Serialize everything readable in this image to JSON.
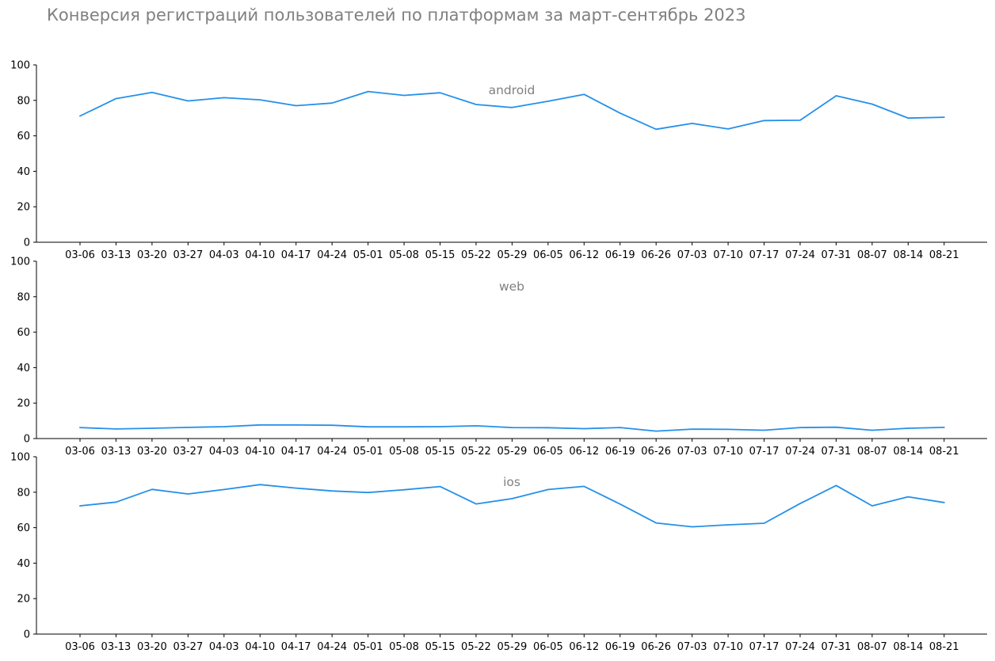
{
  "title": "Конверсия регистраций пользователей по платформам за март-сентябрь 2023",
  "chart_data": {
    "type": "line",
    "title": "Конверсия регистраций пользователей по платформам за март-сентябрь 2023",
    "x": [
      "03-06",
      "03-13",
      "03-20",
      "03-27",
      "04-03",
      "04-10",
      "04-17",
      "04-24",
      "05-01",
      "05-08",
      "05-15",
      "05-22",
      "05-29",
      "06-05",
      "06-12",
      "06-19",
      "06-26",
      "07-03",
      "07-10",
      "07-17",
      "07-24",
      "07-31",
      "08-07",
      "08-14",
      "08-21"
    ],
    "ylim": [
      0,
      100
    ],
    "yticks": [
      0,
      20,
      40,
      60,
      80,
      100
    ],
    "grid": false,
    "legend": "none",
    "color": "#2490EA",
    "panels": [
      {
        "name": "android",
        "values": [
          71.2,
          81.0,
          84.5,
          79.7,
          81.5,
          80.3,
          77.0,
          78.5,
          85.0,
          82.8,
          84.3,
          77.7,
          76.0,
          79.5,
          83.4,
          72.8,
          63.7,
          67.0,
          63.9,
          68.6,
          68.8,
          82.6,
          77.9,
          70.0,
          70.5
        ]
      },
      {
        "name": "web",
        "values": [
          6.2,
          5.4,
          5.8,
          6.3,
          6.7,
          7.7,
          7.7,
          7.5,
          6.6,
          6.6,
          6.7,
          7.2,
          6.2,
          6.1,
          5.6,
          6.2,
          4.2,
          5.3,
          5.2,
          4.7,
          6.2,
          6.4,
          4.7,
          5.8,
          6.3
        ]
      },
      {
        "name": "ios",
        "values": [
          72.3,
          74.4,
          81.6,
          79.0,
          81.5,
          84.3,
          82.3,
          80.7,
          79.8,
          81.4,
          83.2,
          73.4,
          76.4,
          81.5,
          83.3,
          73.3,
          62.7,
          60.5,
          61.6,
          62.5,
          73.6,
          83.8,
          72.3,
          77.4,
          74.2
        ]
      }
    ]
  }
}
